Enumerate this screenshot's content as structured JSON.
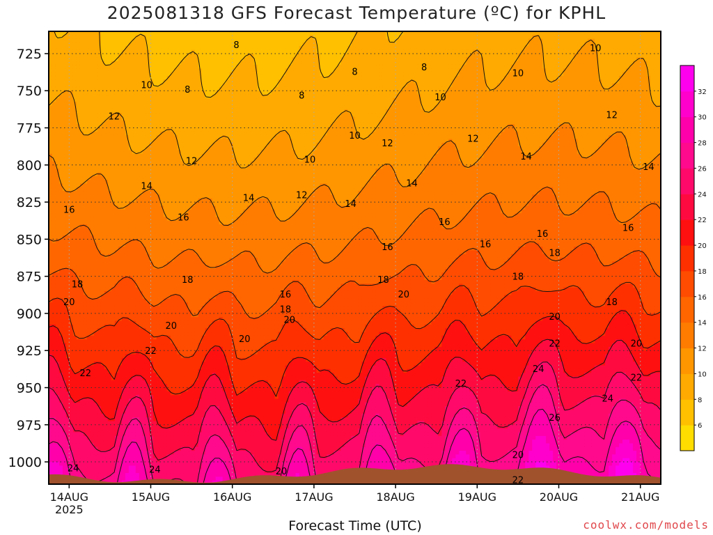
{
  "title": "2025081318 GFS Forecast Temperature (ºC) for KPHL",
  "credit": "coolwx.com/models",
  "chart_data": {
    "type": "heatmap",
    "title": "2025081318 GFS Forecast Temperature (ºC) for KPHL",
    "xlabel": "Forecast Time (UTC)",
    "ylabel": "",
    "x_ticks": [
      "14AUG\n2025",
      "15AUG",
      "16AUG",
      "17AUG",
      "18AUG",
      "19AUG",
      "20AUG",
      "21AUG"
    ],
    "x_range_days": [
      13.75,
      21.25
    ],
    "y_ticks": [
      725,
      750,
      775,
      800,
      825,
      850,
      875,
      900,
      925,
      950,
      975,
      1000
    ],
    "y_range_hpa": [
      710,
      1015
    ],
    "y_scale": "pressure",
    "grid": true,
    "surface_color": "#a0522d",
    "colorbar": {
      "ticks": [
        6,
        8,
        10,
        12,
        14,
        16,
        18,
        20,
        22,
        24,
        26,
        28,
        30,
        32
      ],
      "levels": [
        4,
        6,
        8,
        10,
        12,
        14,
        16,
        18,
        20,
        22,
        24,
        26,
        28,
        30,
        32,
        34
      ],
      "colors": [
        "#ffdd00",
        "#ffc000",
        "#ffaa00",
        "#ff9600",
        "#ff7c00",
        "#ff6600",
        "#ff4c00",
        "#ff3000",
        "#ff1010",
        "#ff0a40",
        "#ff0a6a",
        "#ff0a8c",
        "#ff00aa",
        "#ff00cc",
        "#ff00ee"
      ]
    },
    "contour_labels": [
      {
        "t": 14.05,
        "p": 1004,
        "v": "24"
      },
      {
        "t": 15.05,
        "p": 1005,
        "v": "24"
      },
      {
        "t": 16.6,
        "p": 1006,
        "v": "20"
      },
      {
        "t": 19.5,
        "p": 1012,
        "v": "22"
      },
      {
        "t": 19.5,
        "p": 995,
        "v": "20"
      },
      {
        "t": 14.2,
        "p": 940,
        "v": "22"
      },
      {
        "t": 15.0,
        "p": 925,
        "v": "22"
      },
      {
        "t": 15.25,
        "p": 908,
        "v": "20"
      },
      {
        "t": 14.0,
        "p": 892,
        "v": "20"
      },
      {
        "t": 14.1,
        "p": 880,
        "v": "18"
      },
      {
        "t": 15.45,
        "p": 877,
        "v": "18"
      },
      {
        "t": 16.15,
        "p": 917,
        "v": "20"
      },
      {
        "t": 16.7,
        "p": 904,
        "v": "20"
      },
      {
        "t": 16.65,
        "p": 897,
        "v": "18"
      },
      {
        "t": 16.65,
        "p": 887,
        "v": "16"
      },
      {
        "t": 17.85,
        "p": 877,
        "v": "18"
      },
      {
        "t": 18.1,
        "p": 887,
        "v": "20"
      },
      {
        "t": 17.9,
        "p": 855,
        "v": "16"
      },
      {
        "t": 18.6,
        "p": 838,
        "v": "16"
      },
      {
        "t": 19.1,
        "p": 853,
        "v": "16"
      },
      {
        "t": 19.5,
        "p": 875,
        "v": "18"
      },
      {
        "t": 19.8,
        "p": 846,
        "v": "16"
      },
      {
        "t": 19.95,
        "p": 859,
        "v": "18"
      },
      {
        "t": 19.95,
        "p": 902,
        "v": "20"
      },
      {
        "t": 19.95,
        "p": 920,
        "v": "22"
      },
      {
        "t": 19.75,
        "p": 937,
        "v": "24"
      },
      {
        "t": 19.95,
        "p": 970,
        "v": "26"
      },
      {
        "t": 18.8,
        "p": 947,
        "v": "22"
      },
      {
        "t": 20.65,
        "p": 892,
        "v": "18"
      },
      {
        "t": 20.85,
        "p": 842,
        "v": "16"
      },
      {
        "t": 20.95,
        "p": 920,
        "v": "20"
      },
      {
        "t": 20.95,
        "p": 943,
        "v": "22"
      },
      {
        "t": 20.6,
        "p": 957,
        "v": "24"
      },
      {
        "t": 14.0,
        "p": 830,
        "v": "16"
      },
      {
        "t": 15.4,
        "p": 835,
        "v": "16"
      },
      {
        "t": 14.95,
        "p": 814,
        "v": "14"
      },
      {
        "t": 16.2,
        "p": 822,
        "v": "14"
      },
      {
        "t": 15.5,
        "p": 797,
        "v": "12"
      },
      {
        "t": 16.85,
        "p": 820,
        "v": "12"
      },
      {
        "t": 17.45,
        "p": 826,
        "v": "14"
      },
      {
        "t": 18.2,
        "p": 812,
        "v": "14"
      },
      {
        "t": 17.9,
        "p": 785,
        "v": "12"
      },
      {
        "t": 18.95,
        "p": 782,
        "v": "12"
      },
      {
        "t": 19.6,
        "p": 794,
        "v": "14"
      },
      {
        "t": 20.65,
        "p": 766,
        "v": "12"
      },
      {
        "t": 21.1,
        "p": 801,
        "v": "14"
      },
      {
        "t": 14.55,
        "p": 767,
        "v": "12"
      },
      {
        "t": 14.95,
        "p": 746,
        "v": "10"
      },
      {
        "t": 15.45,
        "p": 749,
        "v": "8"
      },
      {
        "t": 16.05,
        "p": 719,
        "v": "8"
      },
      {
        "t": 16.85,
        "p": 753,
        "v": "8"
      },
      {
        "t": 17.5,
        "p": 737,
        "v": "8"
      },
      {
        "t": 18.35,
        "p": 734,
        "v": "8"
      },
      {
        "t": 17.5,
        "p": 780,
        "v": "10"
      },
      {
        "t": 16.95,
        "p": 796,
        "v": "10"
      },
      {
        "t": 18.55,
        "p": 754,
        "v": "10"
      },
      {
        "t": 19.5,
        "p": 738,
        "v": "10"
      },
      {
        "t": 20.45,
        "p": 721,
        "v": "10"
      }
    ]
  }
}
